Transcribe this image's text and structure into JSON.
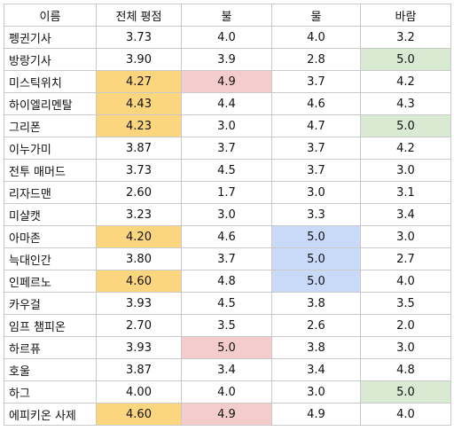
{
  "table": {
    "headers": [
      "이름",
      "전체 평점",
      "불",
      "물",
      "바람"
    ],
    "rows": [
      {
        "name": "펭귄기사",
        "overall": "3.73",
        "fire": "4.0",
        "water": "4.0",
        "wind": "3.2"
      },
      {
        "name": "방랑기사",
        "overall": "3.90",
        "fire": "3.9",
        "water": "2.8",
        "wind": "5.0"
      },
      {
        "name": "미스틱위치",
        "overall": "4.27",
        "fire": "4.9",
        "water": "3.7",
        "wind": "4.2"
      },
      {
        "name": "하이엘리멘탈",
        "overall": "4.43",
        "fire": "4.4",
        "water": "4.6",
        "wind": "4.3"
      },
      {
        "name": "그리폰",
        "overall": "4.23",
        "fire": "3.0",
        "water": "4.7",
        "wind": "5.0"
      },
      {
        "name": "이누가미",
        "overall": "3.87",
        "fire": "3.7",
        "water": "3.7",
        "wind": "4.2"
      },
      {
        "name": "전투 매머드",
        "overall": "3.73",
        "fire": "4.5",
        "water": "3.7",
        "wind": "3.0"
      },
      {
        "name": "리자드맨",
        "overall": "2.60",
        "fire": "1.7",
        "water": "3.0",
        "wind": "3.1"
      },
      {
        "name": "미샬캣",
        "overall": "3.23",
        "fire": "3.0",
        "water": "3.3",
        "wind": "3.4"
      },
      {
        "name": "아마존",
        "overall": "4.20",
        "fire": "4.6",
        "water": "5.0",
        "wind": "3.0"
      },
      {
        "name": "늑대인간",
        "overall": "3.80",
        "fire": "3.7",
        "water": "5.0",
        "wind": "2.7"
      },
      {
        "name": "인페르노",
        "overall": "4.60",
        "fire": "4.8",
        "water": "5.0",
        "wind": "4.0"
      },
      {
        "name": "카우걸",
        "overall": "3.93",
        "fire": "4.5",
        "water": "3.8",
        "wind": "3.5"
      },
      {
        "name": "임프 챔피온",
        "overall": "2.70",
        "fire": "3.5",
        "water": "2.6",
        "wind": "2.0"
      },
      {
        "name": "하르퓨",
        "overall": "3.93",
        "fire": "5.0",
        "water": "3.8",
        "wind": "3.0"
      },
      {
        "name": "호울",
        "overall": "3.87",
        "fire": "3.4",
        "water": "3.4",
        "wind": "4.8"
      },
      {
        "name": "하그",
        "overall": "4.00",
        "fire": "4.0",
        "water": "3.0",
        "wind": "5.0"
      },
      {
        "name": "에피키온 사제",
        "overall": "4.60",
        "fire": "4.9",
        "water": "4.9",
        "wind": "4.0"
      }
    ]
  },
  "highlight_colors": {
    "overall": "#fcd67f",
    "fire": "#f4cccc",
    "water": "#c9daf8",
    "wind": "#d9ead3"
  },
  "highlighted_cells": {
    "overall": [
      "미스틱위치",
      "하이엘리멘탈",
      "그리폰",
      "아마존",
      "인페르노",
      "에피키온 사제"
    ],
    "fire": [
      "미스틱위치",
      "하르퓨",
      "에피키온 사제"
    ],
    "water": [
      "아마존",
      "늑대인간",
      "인페르노"
    ],
    "wind": [
      "방랑기사",
      "그리폰",
      "하그"
    ]
  }
}
